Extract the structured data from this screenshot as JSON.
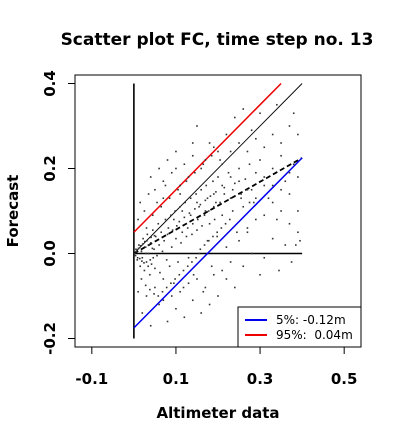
{
  "chart_data": {
    "type": "scatter",
    "title": "Scatter plot FC, time step no. 13",
    "xlabel": "Altimeter data",
    "ylabel": "Forecast",
    "xlim": [
      -0.14,
      0.54
    ],
    "ylim": [
      -0.22,
      0.42
    ],
    "xticks": [
      -0.1,
      0.1,
      0.3,
      0.5
    ],
    "xtick_labels": [
      "-0.1",
      "0.1",
      "0.3",
      "0.5"
    ],
    "yticks": [
      -0.2,
      0.0,
      0.2,
      0.4
    ],
    "ytick_labels": [
      "-0.2",
      "0.0",
      "0.2",
      "0.4"
    ],
    "grid": false,
    "legend_position": "bottom-right",
    "legend": [
      {
        "label": "5%: -0.12m",
        "color": "#0000ee"
      },
      {
        "label": "95%:  0.04m",
        "color": "#ee0000"
      }
    ],
    "lines": [
      {
        "role": "y-axis reference",
        "style": "solid",
        "color": "#000000",
        "points": [
          [
            0,
            -0.2
          ],
          [
            0,
            0.4
          ]
        ]
      },
      {
        "role": "zero reference",
        "style": "solid",
        "color": "#000000",
        "points": [
          [
            0,
            0
          ],
          [
            0.4,
            0
          ]
        ]
      },
      {
        "role": "identity",
        "style": "solid-thin",
        "color": "#000000",
        "points": [
          [
            0,
            0
          ],
          [
            0.4,
            0.4
          ]
        ]
      },
      {
        "role": "regression",
        "style": "dashed",
        "color": "#000000",
        "points": [
          [
            0,
            0
          ],
          [
            0.4,
            0.225
          ]
        ]
      },
      {
        "role": "5% quantile",
        "style": "solid",
        "color": "#0000ee",
        "points": [
          [
            0,
            -0.175
          ],
          [
            0.4,
            0.225
          ]
        ]
      },
      {
        "role": "95% quantile",
        "style": "solid",
        "color": "#ee0000",
        "points": [
          [
            0,
            0.05
          ],
          [
            0.35,
            0.4
          ]
        ]
      }
    ],
    "points": [
      [
        0.005,
        0.01
      ],
      [
        0.008,
        -0.015
      ],
      [
        0.012,
        0.02
      ],
      [
        0.015,
        -0.03
      ],
      [
        0.018,
        0.005
      ],
      [
        0.02,
        -0.01
      ],
      [
        0.022,
        0.035
      ],
      [
        0.025,
        -0.04
      ],
      [
        0.028,
        0.015
      ],
      [
        0.03,
        -0.02
      ],
      [
        0.032,
        0.045
      ],
      [
        0.035,
        0.0
      ],
      [
        0.038,
        -0.05
      ],
      [
        0.04,
        0.025
      ],
      [
        0.042,
        -0.025
      ],
      [
        0.045,
        0.055
      ],
      [
        0.048,
        0.01
      ],
      [
        0.05,
        -0.035
      ],
      [
        0.052,
        0.04
      ],
      [
        0.055,
        -0.005
      ],
      [
        0.058,
        0.07
      ],
      [
        0.06,
        0.02
      ],
      [
        0.062,
        -0.045
      ],
      [
        0.065,
        0.05
      ],
      [
        0.068,
        0.005
      ],
      [
        0.07,
        -0.06
      ],
      [
        0.072,
        0.03
      ],
      [
        0.075,
        0.08
      ],
      [
        0.078,
        -0.015
      ],
      [
        0.08,
        0.045
      ],
      [
        0.082,
        0.06
      ],
      [
        0.085,
        -0.03
      ],
      [
        0.088,
        0.09
      ],
      [
        0.09,
        0.015
      ],
      [
        0.092,
        0.055
      ],
      [
        0.095,
        -0.07
      ],
      [
        0.098,
        0.1
      ],
      [
        0.1,
        0.035
      ],
      [
        0.102,
        0.065
      ],
      [
        0.105,
        -0.02
      ],
      [
        0.108,
        0.075
      ],
      [
        0.11,
        0.11
      ],
      [
        0.112,
        0.025
      ],
      [
        0.115,
        0.05
      ],
      [
        0.118,
        -0.08
      ],
      [
        0.12,
        0.085
      ],
      [
        0.122,
        0.12
      ],
      [
        0.125,
        0.04
      ],
      [
        0.128,
        0.06
      ],
      [
        0.13,
        -0.01
      ],
      [
        0.132,
        0.095
      ],
      [
        0.135,
        0.13
      ],
      [
        0.138,
        0.045
      ],
      [
        0.14,
        0.07
      ],
      [
        0.142,
        -0.05
      ],
      [
        0.145,
        0.105
      ],
      [
        0.148,
        0.14
      ],
      [
        0.15,
        0.055
      ],
      [
        0.152,
        0.08
      ],
      [
        0.155,
        0.0
      ],
      [
        0.158,
        0.115
      ],
      [
        0.16,
        0.15
      ],
      [
        0.162,
        0.065
      ],
      [
        0.165,
        -0.09
      ],
      [
        0.168,
        0.09
      ],
      [
        0.17,
        0.125
      ],
      [
        0.172,
        0.16
      ],
      [
        0.175,
        0.03
      ],
      [
        0.178,
        0.1
      ],
      [
        0.18,
        0.07
      ],
      [
        0.182,
        0.135
      ],
      [
        0.185,
        -0.03
      ],
      [
        0.188,
        0.17
      ],
      [
        0.19,
        0.11
      ],
      [
        0.192,
        0.08
      ],
      [
        0.195,
        0.145
      ],
      [
        0.198,
        0.04
      ],
      [
        0.2,
        0.18
      ],
      [
        0.205,
        0.12
      ],
      [
        0.21,
        0.09
      ],
      [
        0.215,
        0.155
      ],
      [
        0.22,
        -0.06
      ],
      [
        0.225,
        0.19
      ],
      [
        0.23,
        0.13
      ],
      [
        0.235,
        0.1
      ],
      [
        0.24,
        0.165
      ],
      [
        0.245,
        0.05
      ],
      [
        0.25,
        0.2
      ],
      [
        0.255,
        0.14
      ],
      [
        0.26,
        0.11
      ],
      [
        0.265,
        0.175
      ],
      [
        0.27,
        0.06
      ],
      [
        0.275,
        0.21
      ],
      [
        0.28,
        0.15
      ],
      [
        0.285,
        0.12
      ],
      [
        0.29,
        0.19
      ],
      [
        0.3,
        0.22
      ],
      [
        0.31,
        0.16
      ],
      [
        0.32,
        0.13
      ],
      [
        0.33,
        0.2
      ],
      [
        0.34,
        0.08
      ],
      [
        0.35,
        0.23
      ],
      [
        0.36,
        0.17
      ],
      [
        0.37,
        0.14
      ],
      [
        0.38,
        0.21
      ],
      [
        0.39,
        0.1
      ],
      [
        0.395,
        0.03
      ],
      [
        0.385,
        0.02
      ],
      [
        0.375,
        -0.02
      ],
      [
        0.36,
        0.02
      ],
      [
        0.345,
        -0.04
      ],
      [
        0.33,
        0.035
      ],
      [
        0.31,
        -0.01
      ],
      [
        0.3,
        -0.05
      ],
      [
        0.28,
        0.0
      ],
      [
        0.26,
        -0.03
      ],
      [
        0.24,
        -0.08
      ],
      [
        0.22,
        0.015
      ],
      [
        0.2,
        -0.1
      ],
      [
        0.18,
        -0.12
      ],
      [
        0.16,
        -0.14
      ],
      [
        0.14,
        -0.11
      ],
      [
        0.12,
        -0.15
      ],
      [
        0.1,
        -0.13
      ],
      [
        0.08,
        -0.16
      ],
      [
        0.06,
        -0.12
      ],
      [
        0.04,
        -0.17
      ],
      [
        0.02,
        -0.14
      ],
      [
        0.01,
        -0.09
      ],
      [
        0.03,
        -0.1
      ],
      [
        0.05,
        -0.08
      ],
      [
        0.07,
        -0.11
      ],
      [
        0.09,
        -0.1
      ],
      [
        0.11,
        -0.09
      ],
      [
        0.13,
        -0.07
      ],
      [
        0.15,
        -0.06
      ],
      [
        0.17,
        -0.08
      ],
      [
        0.19,
        -0.05
      ],
      [
        0.21,
        -0.04
      ],
      [
        0.23,
        -0.02
      ],
      [
        0.25,
        0.03
      ],
      [
        0.27,
        0.05
      ],
      [
        0.29,
        0.08
      ],
      [
        0.31,
        0.09
      ],
      [
        0.33,
        0.12
      ],
      [
        0.35,
        0.15
      ],
      [
        0.37,
        0.19
      ],
      [
        0.39,
        0.18
      ],
      [
        0.15,
        0.3
      ],
      [
        0.18,
        0.26
      ],
      [
        0.22,
        0.28
      ],
      [
        0.24,
        0.32
      ],
      [
        0.28,
        0.29
      ],
      [
        0.2,
        0.24
      ],
      [
        0.1,
        0.24
      ],
      [
        0.08,
        0.22
      ],
      [
        0.06,
        0.2
      ],
      [
        0.04,
        0.18
      ],
      [
        0.05,
        0.15
      ],
      [
        0.07,
        0.17
      ],
      [
        0.09,
        0.19
      ],
      [
        0.11,
        0.16
      ],
      [
        0.13,
        0.18
      ],
      [
        0.12,
        0.21
      ],
      [
        0.14,
        0.23
      ],
      [
        0.16,
        0.2
      ],
      [
        0.17,
        0.22
      ],
      [
        0.19,
        0.25
      ],
      [
        0.21,
        0.21
      ],
      [
        0.23,
        0.24
      ],
      [
        0.25,
        0.26
      ],
      [
        0.27,
        0.24
      ],
      [
        0.29,
        0.27
      ],
      [
        0.31,
        0.25
      ],
      [
        0.33,
        0.28
      ],
      [
        0.35,
        0.26
      ],
      [
        0.37,
        0.3
      ],
      [
        0.39,
        0.28
      ],
      [
        0.38,
        0.33
      ],
      [
        0.26,
        0.34
      ],
      [
        0.3,
        0.33
      ],
      [
        0.34,
        0.35
      ],
      [
        0.14,
        0.26
      ],
      [
        0.1,
        0.2
      ],
      [
        0.07,
        0.13
      ],
      [
        0.11,
        0.14
      ],
      [
        0.15,
        0.12
      ],
      [
        0.17,
        0.1
      ],
      [
        0.19,
        0.14
      ],
      [
        0.21,
        0.16
      ],
      [
        0.23,
        0.18
      ],
      [
        0.25,
        0.17
      ],
      [
        0.27,
        0.15
      ],
      [
        0.29,
        0.13
      ],
      [
        0.31,
        0.18
      ],
      [
        0.33,
        0.16
      ],
      [
        0.35,
        0.1
      ],
      [
        0.37,
        0.07
      ],
      [
        0.39,
        0.05
      ],
      [
        0.03,
        0.06
      ],
      [
        0.045,
        0.09
      ],
      [
        0.065,
        0.11
      ],
      [
        0.085,
        0.13
      ],
      [
        0.105,
        0.15
      ],
      [
        0.125,
        0.17
      ],
      [
        0.145,
        0.19
      ],
      [
        0.165,
        0.21
      ],
      [
        0.185,
        0.23
      ],
      [
        0.205,
        0.22
      ],
      [
        0.01,
        0.08
      ],
      [
        0.015,
        0.12
      ],
      [
        0.025,
        0.1
      ],
      [
        0.035,
        0.14
      ],
      [
        0.055,
        0.12
      ],
      [
        0.075,
        0.16
      ],
      [
        0.095,
        0.08
      ],
      [
        0.115,
        0.1
      ],
      [
        0.135,
        0.09
      ],
      [
        0.155,
        0.11
      ],
      [
        0.175,
        0.13
      ],
      [
        0.195,
        0.12
      ],
      [
        0.215,
        0.14
      ],
      [
        0.235,
        0.15
      ],
      [
        0.255,
        0.13
      ],
      [
        0.275,
        0.12
      ],
      [
        0.018,
        -0.06
      ],
      [
        0.028,
        -0.075
      ],
      [
        0.038,
        -0.085
      ],
      [
        0.048,
        -0.095
      ],
      [
        0.058,
        -0.1
      ],
      [
        0.068,
        -0.09
      ],
      [
        0.078,
        -0.08
      ],
      [
        0.088,
        -0.07
      ],
      [
        0.098,
        -0.06
      ],
      [
        0.108,
        -0.05
      ],
      [
        0.118,
        -0.04
      ],
      [
        0.128,
        -0.03
      ],
      [
        0.138,
        -0.02
      ],
      [
        0.148,
        -0.01
      ],
      [
        0.158,
        0.01
      ],
      [
        0.168,
        0.02
      ],
      [
        0.178,
        0.03
      ],
      [
        0.188,
        0.04
      ],
      [
        0.198,
        0.05
      ],
      [
        0.208,
        0.06
      ],
      [
        0.218,
        0.07
      ],
      [
        0.228,
        0.08
      ],
      [
        0.002,
        0.0
      ],
      [
        0.004,
        -0.005
      ],
      [
        0.006,
        0.005
      ],
      [
        0.009,
        -0.01
      ],
      [
        0.011,
        0.012
      ],
      [
        0.014,
        -0.012
      ],
      [
        0.016,
        0.018
      ],
      [
        0.019,
        -0.018
      ],
      [
        0.021,
        0.022
      ],
      [
        0.024,
        -0.022
      ],
      [
        0.026,
        0.028
      ],
      [
        0.029,
        0.0
      ],
      [
        0.031,
        0.03
      ],
      [
        0.034,
        -0.03
      ],
      [
        0.036,
        0.02
      ],
      [
        0.039,
        -0.015
      ],
      [
        0.041,
        0.038
      ],
      [
        0.044,
        0.012
      ],
      [
        0.046,
        -0.01
      ],
      [
        0.049,
        0.042
      ]
    ]
  }
}
